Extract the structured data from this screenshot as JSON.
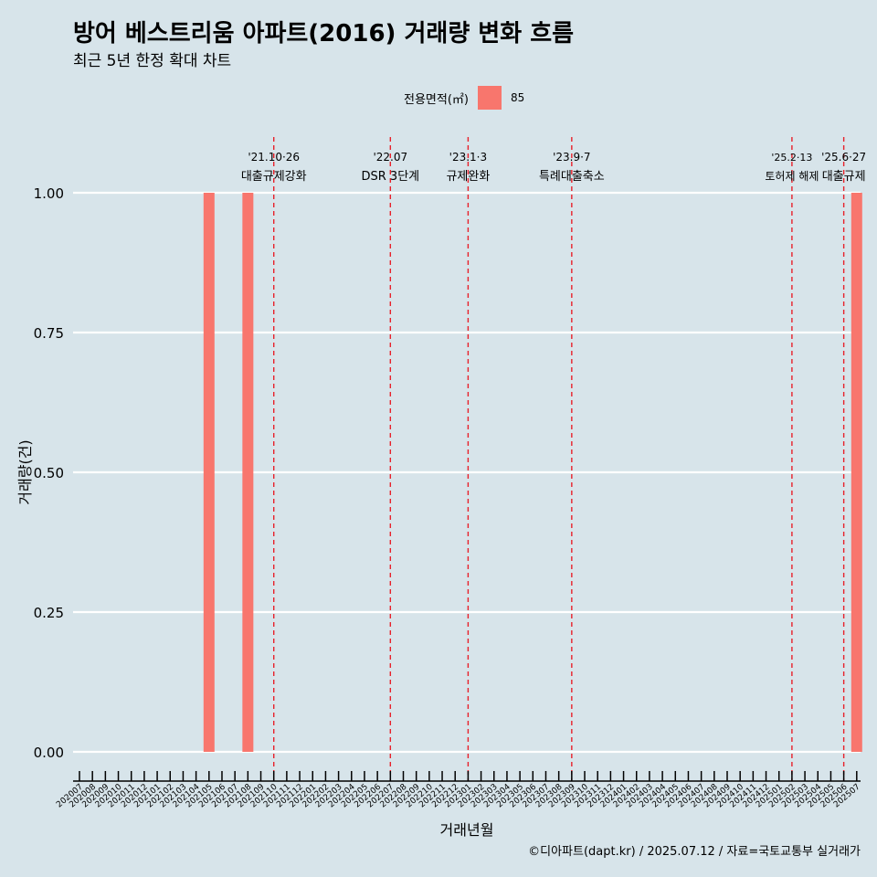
{
  "title": "방어 베스트리움 아파트(2016) 거래량 변화 흐름",
  "subtitle": "최근 5년 한정 확대 차트",
  "caption": "©디아파트(dapt.kr) / 2025.07.12 / 자료=국토교통부 실거래가",
  "legend": {
    "title": "전용면적(㎡)",
    "label": "85",
    "color": "#f8766d"
  },
  "chart_data": {
    "type": "bar",
    "xlabel": "거래년월",
    "ylabel": "거래량(건)",
    "ylim": [
      0,
      1
    ],
    "y_ticks": [
      "0.00",
      "0.25",
      "0.50",
      "0.75",
      "1.00"
    ],
    "grid": true,
    "legend_position": "top",
    "categories": [
      "202007",
      "202008",
      "202009",
      "202010",
      "202011",
      "202012",
      "202101",
      "202102",
      "202103",
      "202104",
      "202105",
      "202106",
      "202107",
      "202108",
      "202109",
      "202110",
      "202111",
      "202112",
      "202201",
      "202202",
      "202203",
      "202204",
      "202205",
      "202206",
      "202207",
      "202208",
      "202209",
      "202210",
      "202211",
      "202212",
      "202301",
      "202302",
      "202303",
      "202304",
      "202305",
      "202306",
      "202307",
      "202308",
      "202309",
      "202310",
      "202311",
      "202312",
      "202401",
      "202402",
      "202403",
      "202404",
      "202405",
      "202406",
      "202407",
      "202408",
      "202409",
      "202410",
      "202411",
      "202412",
      "202501",
      "202502",
      "202503",
      "202504",
      "202505",
      "202506",
      "202507"
    ],
    "series": [
      {
        "name": "85",
        "color": "#f8766d",
        "values": [
          0,
          0,
          0,
          0,
          0,
          0,
          0,
          0,
          0,
          0,
          1,
          0,
          0,
          1,
          0,
          0,
          0,
          0,
          0,
          0,
          0,
          0,
          0,
          0,
          0,
          0,
          0,
          0,
          0,
          0,
          0,
          0,
          0,
          0,
          0,
          0,
          0,
          0,
          0,
          0,
          0,
          0,
          0,
          0,
          0,
          0,
          0,
          0,
          0,
          0,
          0,
          0,
          0,
          0,
          0,
          0,
          0,
          0,
          0,
          0,
          1
        ]
      }
    ],
    "annotations": [
      {
        "x": "202110",
        "date": "'21.10·26",
        "label": "대출규제강화"
      },
      {
        "x": "202207",
        "date": "'22.07",
        "label": "DSR 3단계"
      },
      {
        "x": "202301",
        "date": "'23.1·3",
        "label": "규제완화"
      },
      {
        "x": "202309",
        "date": "'23.9·7",
        "label": "특례대출축소"
      },
      {
        "x": "202502",
        "date": "'25.2·13",
        "label": "토허제 해제"
      },
      {
        "x": "202506",
        "date": "'25.6·27",
        "label": "대출규제"
      }
    ]
  }
}
